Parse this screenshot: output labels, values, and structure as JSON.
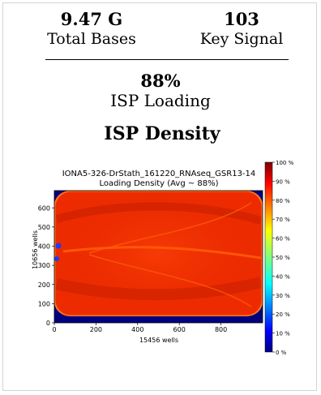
{
  "stats": {
    "total_bases": {
      "value": "9.47 G",
      "label": "Total Bases"
    },
    "key_signal": {
      "value": "103",
      "label": "Key Signal"
    },
    "isp_loading": {
      "value": "88%",
      "label": "ISP Loading"
    }
  },
  "section_title": "ISP Density",
  "chart_data": {
    "type": "heatmap",
    "title": "IONA5-326-DrStath_161220_RNAseq_GSR13-14",
    "subtitle": "Loading Density (Avg ~ 88%)",
    "xlabel": "15456 wells",
    "ylabel": "10656 wells",
    "xlim": [
      0,
      1000
    ],
    "ylim": [
      0,
      690
    ],
    "x_ticks": [
      0,
      200,
      400,
      600,
      800
    ],
    "y_ticks": [
      0,
      100,
      200,
      300,
      400,
      500,
      600
    ],
    "colorbar": {
      "min": 0,
      "max": 100,
      "ticks": [
        "0 %",
        "10 %",
        "20 %",
        "30 %",
        "40 %",
        "50 %",
        "60 %",
        "70 %",
        "80 %",
        "90 %",
        "100 %"
      ]
    },
    "average_percent": 88,
    "colors": {
      "background": "#00007f",
      "chip": "#ee2b00",
      "low_band": "#c41d00",
      "hot": "#ff5a0a"
    }
  }
}
